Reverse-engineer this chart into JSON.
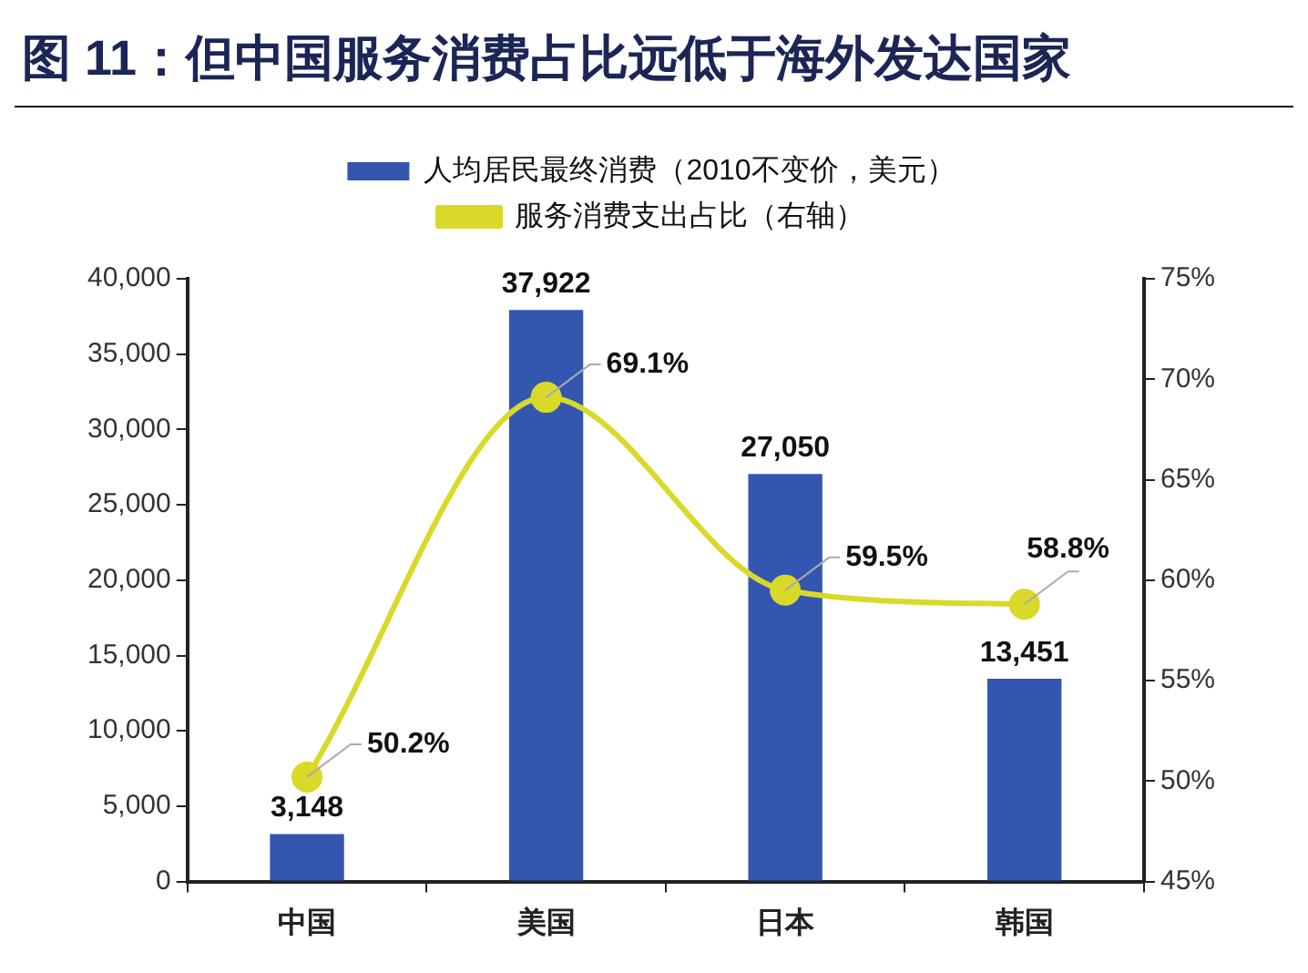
{
  "chart_data": {
    "type": "bar",
    "title": "图 11：但中国服务消费占比远低于海外发达国家",
    "categories": [
      "中国",
      "美国",
      "日本",
      "韩国"
    ],
    "series": [
      {
        "name": "人均居民最终消费（2010不变价，美元）",
        "color": "#3357b0",
        "values": [
          3148,
          37922,
          27050,
          13451
        ],
        "value_labels": [
          "3,148",
          "37,922",
          "27,050",
          "13,451"
        ]
      },
      {
        "name": "服务消费支出占比（右轴）",
        "type": "line",
        "axis": "y2",
        "color": "#d9d92a",
        "values": [
          50.2,
          69.1,
          59.5,
          58.8
        ],
        "value_labels": [
          "50.2%",
          "69.1%",
          "59.5%",
          "58.8%"
        ]
      }
    ],
    "ylim": [
      0,
      40000
    ],
    "yticks": [
      0,
      {
        "value": 5000,
        "label": "5,000"
      },
      {
        "value": 10000,
        "label": "10,000"
      },
      {
        "value": 15000,
        "label": "15,000"
      },
      {
        "value": 20000,
        "label": "20,000"
      },
      {
        "value": 25000,
        "label": "25,000"
      },
      {
        "value": 30000,
        "label": "30,000"
      },
      {
        "value": 35000,
        "label": "35,000"
      },
      {
        "value": 40000,
        "label": "40,000"
      }
    ],
    "y2lim": [
      45,
      75
    ],
    "y2ticks": [
      {
        "value": 45,
        "label": "45%"
      },
      {
        "value": 50,
        "label": "50%"
      },
      {
        "value": 55,
        "label": "55%"
      },
      {
        "value": 60,
        "label": "60%"
      },
      {
        "value": 65,
        "label": "65%"
      },
      {
        "value": 70,
        "label": "70%"
      },
      {
        "value": 75,
        "label": "75%"
      }
    ],
    "grid": false,
    "legend": "top",
    "marker": "circle",
    "line_style": "solid"
  }
}
